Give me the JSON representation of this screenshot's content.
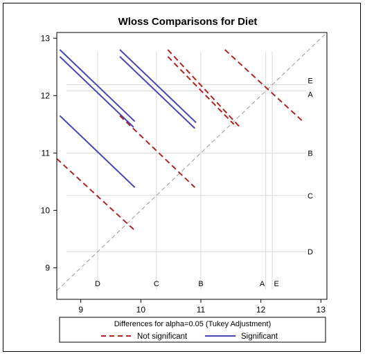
{
  "chart_data": {
    "type": "line",
    "title": "Wloss Comparisons for Diet",
    "xlabel": "",
    "ylabel": "",
    "xlim": [
      8.6,
      13.1
    ],
    "ylim": [
      8.45,
      13.1
    ],
    "x_ticks": [
      9,
      10,
      11,
      12,
      13
    ],
    "y_ticks": [
      9,
      10,
      11,
      12,
      13
    ],
    "grid": false,
    "diet_means": [
      {
        "label": "D",
        "value": 9.28
      },
      {
        "label": "C",
        "value": 10.26
      },
      {
        "label": "B",
        "value": 11.0
      },
      {
        "label": "A",
        "value": 12.08
      },
      {
        "label": "E",
        "value": 12.19
      }
    ],
    "series": [
      {
        "name": "Not significant",
        "color": "#b22222",
        "style": "dashed",
        "segments": [
          {
            "pair": "C-D",
            "x": [
              8.6,
              9.9
            ],
            "y": [
              10.9,
              9.65
            ]
          },
          {
            "pair": "C-B",
            "x": [
              9.65,
              10.9
            ],
            "y": [
              11.65,
              10.4
            ]
          },
          {
            "pair": "A-B",
            "x": [
              10.45,
              11.65
            ],
            "y": [
              12.8,
              11.45
            ]
          },
          {
            "pair": "E-B",
            "x": [
              10.45,
              11.55
            ],
            "y": [
              12.68,
              11.5
            ]
          },
          {
            "pair": "E-A",
            "x": [
              11.4,
              12.7
            ],
            "y": [
              12.8,
              11.55
            ]
          }
        ]
      },
      {
        "name": "Significant",
        "color": "#4646b4",
        "style": "solid",
        "segments": [
          {
            "pair": "E-D",
            "x": [
              8.65,
              9.9
            ],
            "y": [
              12.8,
              11.55
            ]
          },
          {
            "pair": "A-D",
            "x": [
              8.65,
              9.88
            ],
            "y": [
              12.68,
              11.45
            ]
          },
          {
            "pair": "B-D",
            "x": [
              8.65,
              9.9
            ],
            "y": [
              11.65,
              10.4
            ]
          },
          {
            "pair": "E-C",
            "x": [
              9.65,
              10.92
            ],
            "y": [
              12.8,
              11.53
            ]
          },
          {
            "pair": "A-C",
            "x": [
              9.65,
              10.9
            ],
            "y": [
              12.68,
              11.43
            ]
          }
        ]
      }
    ],
    "legend": {
      "title": "Differences for alpha=0.05 (Tukey Adjustment)",
      "placement": "bottom",
      "entries": [
        "Not significant",
        "Significant"
      ]
    },
    "colors": {
      "not_significant": "#b22222",
      "significant": "#4646b4",
      "reference_line": "#9a9a9a",
      "mean_lines": "#d8d8d8"
    }
  }
}
